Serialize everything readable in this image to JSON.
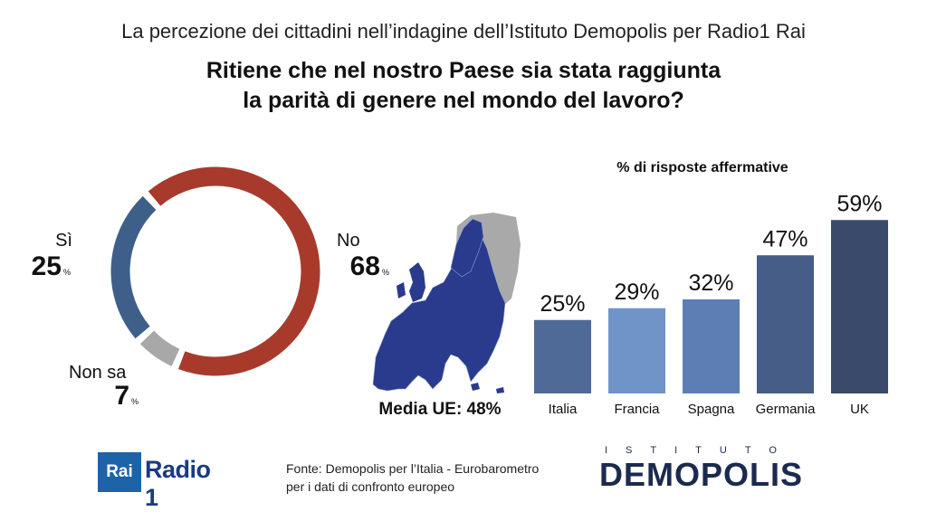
{
  "header": {
    "subtitle": "La percezione dei cittadini nell’indagine dell’Istituto Demopolis per Radio1 Rai",
    "title_line1": "Ritiene che nel nostro Paese sia stata raggiunta",
    "title_line2": "la parità di genere nel mondo del lavoro?"
  },
  "chart_data": [
    {
      "type": "pie",
      "categories": [
        "Sì",
        "No",
        "Non sa"
      ],
      "values": [
        25,
        68,
        7
      ],
      "value_texts": [
        "25",
        "68",
        "7"
      ],
      "unit": "%",
      "colors": [
        "#3e5f8a",
        "#a83a2c",
        "#a8a8a8"
      ]
    },
    {
      "type": "bar",
      "title": "% di risposte affermative",
      "categories": [
        "Italia",
        "Francia",
        "Spagna",
        "Germania",
        "UK"
      ],
      "values": [
        25,
        29,
        32,
        47,
        59
      ],
      "labels": [
        "25%",
        "29%",
        "32%",
        "47%",
        "59%"
      ],
      "colors": [
        "#4f6a96",
        "#7093c8",
        "#5d7db5",
        "#455d87",
        "#3a4a6a"
      ],
      "ylim": [
        0,
        60
      ],
      "annotation": "Media UE: 48%"
    }
  ],
  "footer": {
    "source_line1": "Fonte: Demopolis per l’Italia - Eurobarometro",
    "source_line2": "per i dati di confronto europeo",
    "rai_logo": "Rai",
    "radio_logo": "Radio 1",
    "demopolis_top": "ISTITUTO",
    "demopolis_main": "DEMOPOLIS"
  }
}
